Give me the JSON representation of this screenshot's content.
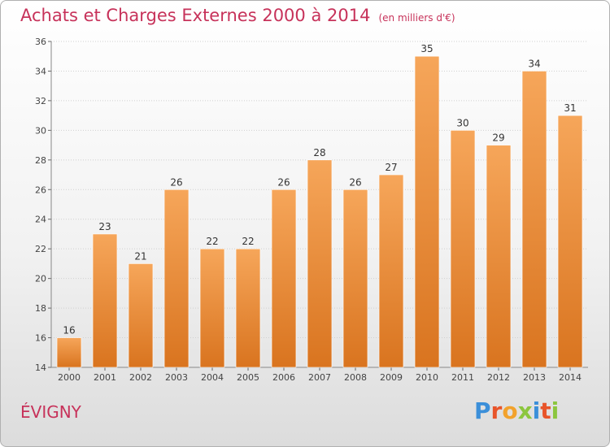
{
  "title": "Achats et Charges Externes 2000 à 2014",
  "subtitle": "(en milliers d'€)",
  "location": "ÉVIGNY",
  "brand": {
    "letters": [
      "P",
      "r",
      "o",
      "x",
      "i",
      "t",
      "i"
    ],
    "colors": [
      "#3b8fd9",
      "#e8542a",
      "#f2a22c",
      "#8cc63e",
      "#3b8fd9",
      "#e8542a",
      "#8cc63e"
    ]
  },
  "colors": {
    "title": "#c7325a",
    "bar_top": "#f6a65a",
    "bar_bottom": "#d9741f"
  },
  "chart_data": {
    "type": "bar",
    "categories": [
      "2000",
      "2001",
      "2002",
      "2003",
      "2004",
      "2005",
      "2006",
      "2007",
      "2008",
      "2009",
      "2010",
      "2011",
      "2012",
      "2013",
      "2014"
    ],
    "values": [
      16,
      23,
      21,
      26,
      22,
      22,
      26,
      28,
      26,
      27,
      35,
      30,
      29,
      34,
      31
    ],
    "ylim": [
      14,
      36
    ],
    "yticks": [
      14,
      16,
      18,
      20,
      22,
      24,
      26,
      28,
      30,
      32,
      34,
      36
    ],
    "grid": true
  }
}
